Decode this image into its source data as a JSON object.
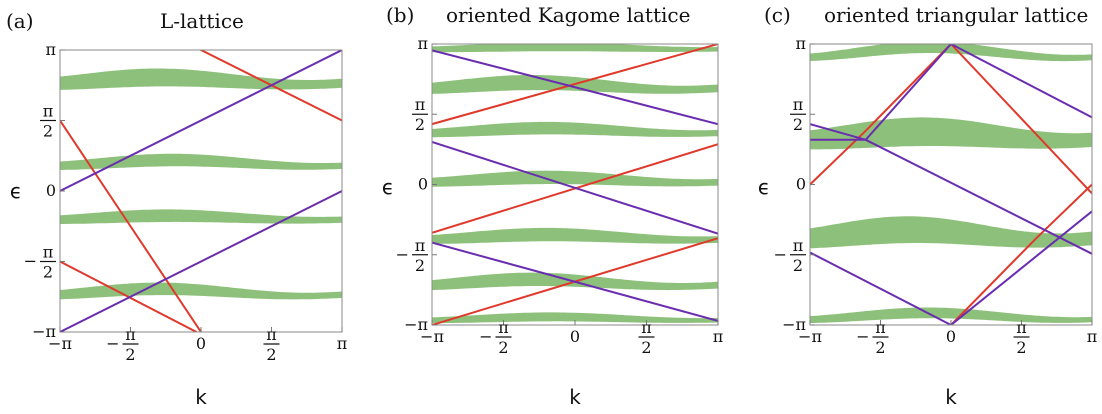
{
  "chart_data": [
    {
      "type": "line",
      "panel": "(a)",
      "title": "L-lattice",
      "xlabel": "k",
      "ylabel": "ϵ",
      "xlim": [
        -3.14159,
        3.14159
      ],
      "ylim": [
        -3.14159,
        3.14159
      ],
      "x_ticks": [
        "−π",
        "−π/2",
        "0",
        "π/2",
        "π"
      ],
      "y_ticks": [
        "−π",
        "−π/2",
        "0",
        "π/2",
        "π"
      ],
      "colors": {
        "band": "#8dc07a",
        "red": "#e0392b",
        "purple": "#6a2db0"
      },
      "bands": [
        {
          "center": 2.45,
          "amp": 0.08,
          "phase": 0.9,
          "half_width": 0.2
        },
        {
          "center": 0.62,
          "amp": 0.07,
          "phase": 0.6,
          "half_width": 0.14
        },
        {
          "center": -0.6,
          "amp": 0.05,
          "phase": 0.7,
          "half_width": 0.14
        },
        {
          "center": -2.26,
          "amp": 0.08,
          "phase": 0.9,
          "half_width": 0.14
        }
      ],
      "lines": [
        {
          "color": "red",
          "points": [
            [
              -3.14159,
              1.57
            ],
            [
              0,
              -3.14159
            ]
          ]
        },
        {
          "color": "red",
          "points": [
            [
              0,
              3.14159
            ],
            [
              3.14159,
              1.57
            ]
          ]
        },
        {
          "color": "red",
          "points": [
            [
              -3.14159,
              -1.57
            ],
            [
              -0.1,
              -3.14159
            ]
          ]
        },
        {
          "color": "purple",
          "points": [
            [
              -3.14159,
              -3.14159
            ],
            [
              3.14159,
              0
            ]
          ]
        },
        {
          "color": "purple",
          "points": [
            [
              -3.14159,
              0
            ],
            [
              3.14159,
              3.14159
            ]
          ]
        }
      ]
    },
    {
      "type": "line",
      "panel": "(b)",
      "title": "oriented Kagome lattice",
      "xlabel": "k",
      "ylabel": "ϵ",
      "xlim": [
        -3.14159,
        3.14159
      ],
      "ylim": [
        -3.14159,
        3.14159
      ],
      "x_ticks": [
        "−π",
        "−π/2",
        "0",
        "π/2",
        "π"
      ],
      "y_ticks": [
        "−π",
        "−π/2",
        "0",
        "π/2",
        "π"
      ],
      "colors": {
        "band": "#8dc07a",
        "red": "#e0392b",
        "purple": "#6a2db0"
      },
      "bands": [
        {
          "center": 3.05,
          "amp": 0.03,
          "phase": 0.5,
          "half_width": 0.1
        },
        {
          "center": 2.2,
          "amp": 0.08,
          "phase": 0.9,
          "half_width": 0.17
        },
        {
          "center": 1.2,
          "amp": 0.06,
          "phase": 0.6,
          "half_width": 0.14
        },
        {
          "center": 0.1,
          "amp": 0.06,
          "phase": 0.6,
          "half_width": 0.15
        },
        {
          "center": -1.18,
          "amp": 0.06,
          "phase": 0.6,
          "half_width": 0.15
        },
        {
          "center": -2.2,
          "amp": 0.08,
          "phase": 0.9,
          "half_width": 0.15
        },
        {
          "center": -3.0,
          "amp": 0.04,
          "phase": 0.5,
          "half_width": 0.1
        }
      ],
      "lines": [
        {
          "color": "red",
          "points": [
            [
              -3.14159,
              1.35
            ],
            [
              3.14159,
              3.14159
            ]
          ]
        },
        {
          "color": "red",
          "points": [
            [
              -3.14159,
              -1.08
            ],
            [
              3.14159,
              0.9
            ]
          ]
        },
        {
          "color": "red",
          "points": [
            [
              -3.14159,
              -3.14159
            ],
            [
              3.14159,
              -1.2
            ]
          ]
        },
        {
          "color": "purple",
          "points": [
            [
              -3.14159,
              3.0
            ],
            [
              3.14159,
              1.35
            ]
          ]
        },
        {
          "color": "purple",
          "points": [
            [
              -3.14159,
              0.95
            ],
            [
              3.14159,
              -1.1
            ]
          ]
        },
        {
          "color": "purple",
          "points": [
            [
              -3.14159,
              -1.3
            ],
            [
              3.14159,
              -3.05
            ]
          ]
        }
      ]
    },
    {
      "type": "line",
      "panel": "(c)",
      "title": "oriented triangular lattice",
      "xlabel": "k",
      "ylabel": "ϵ",
      "xlim": [
        -3.14159,
        3.14159
      ],
      "ylim": [
        -3.14159,
        3.14159
      ],
      "x_ticks": [
        "−π",
        "−π/2",
        "0",
        "π/2",
        "π"
      ],
      "y_ticks": [
        "−π",
        "−π/2",
        "0",
        "π/2",
        "π"
      ],
      "colors": {
        "band": "#8dc07a",
        "red": "#e0392b",
        "purple": "#6a2db0"
      },
      "bands": [
        {
          "center": 2.95,
          "amp": 0.12,
          "phase": 0.5,
          "half_width": 0.13
        },
        {
          "center": 1.08,
          "amp": 0.1,
          "phase": 0.6,
          "half_width": 0.32
        },
        {
          "center": -1.13,
          "amp": 0.12,
          "phase": 0.9,
          "half_width": 0.3
        },
        {
          "center": -2.95,
          "amp": 0.08,
          "phase": 0.5,
          "half_width": 0.12
        }
      ],
      "lines": [
        {
          "color": "red",
          "points": [
            [
              -3.14159,
              0
            ],
            [
              -1.9,
              1.2
            ],
            [
              0,
              3.14159
            ],
            [
              3.14159,
              -0.2
            ]
          ]
        },
        {
          "color": "red",
          "points": [
            [
              0,
              -3.14159
            ],
            [
              1.9,
              -1.2
            ],
            [
              3.14159,
              0
            ]
          ]
        },
        {
          "color": "purple",
          "points": [
            [
              -3.14159,
              1.35
            ],
            [
              -1.9,
              1.0
            ],
            [
              0,
              3.14159
            ],
            [
              3.14159,
              1.5
            ]
          ]
        },
        {
          "color": "purple",
          "points": [
            [
              -3.14159,
              1.0
            ],
            [
              -1.9,
              1.0
            ],
            [
              3.14159,
              -1.55
            ]
          ]
        },
        {
          "color": "purple",
          "points": [
            [
              -3.14159,
              -1.52
            ],
            [
              0,
              -3.14159
            ],
            [
              3.14159,
              -0.6
            ]
          ]
        }
      ]
    }
  ]
}
